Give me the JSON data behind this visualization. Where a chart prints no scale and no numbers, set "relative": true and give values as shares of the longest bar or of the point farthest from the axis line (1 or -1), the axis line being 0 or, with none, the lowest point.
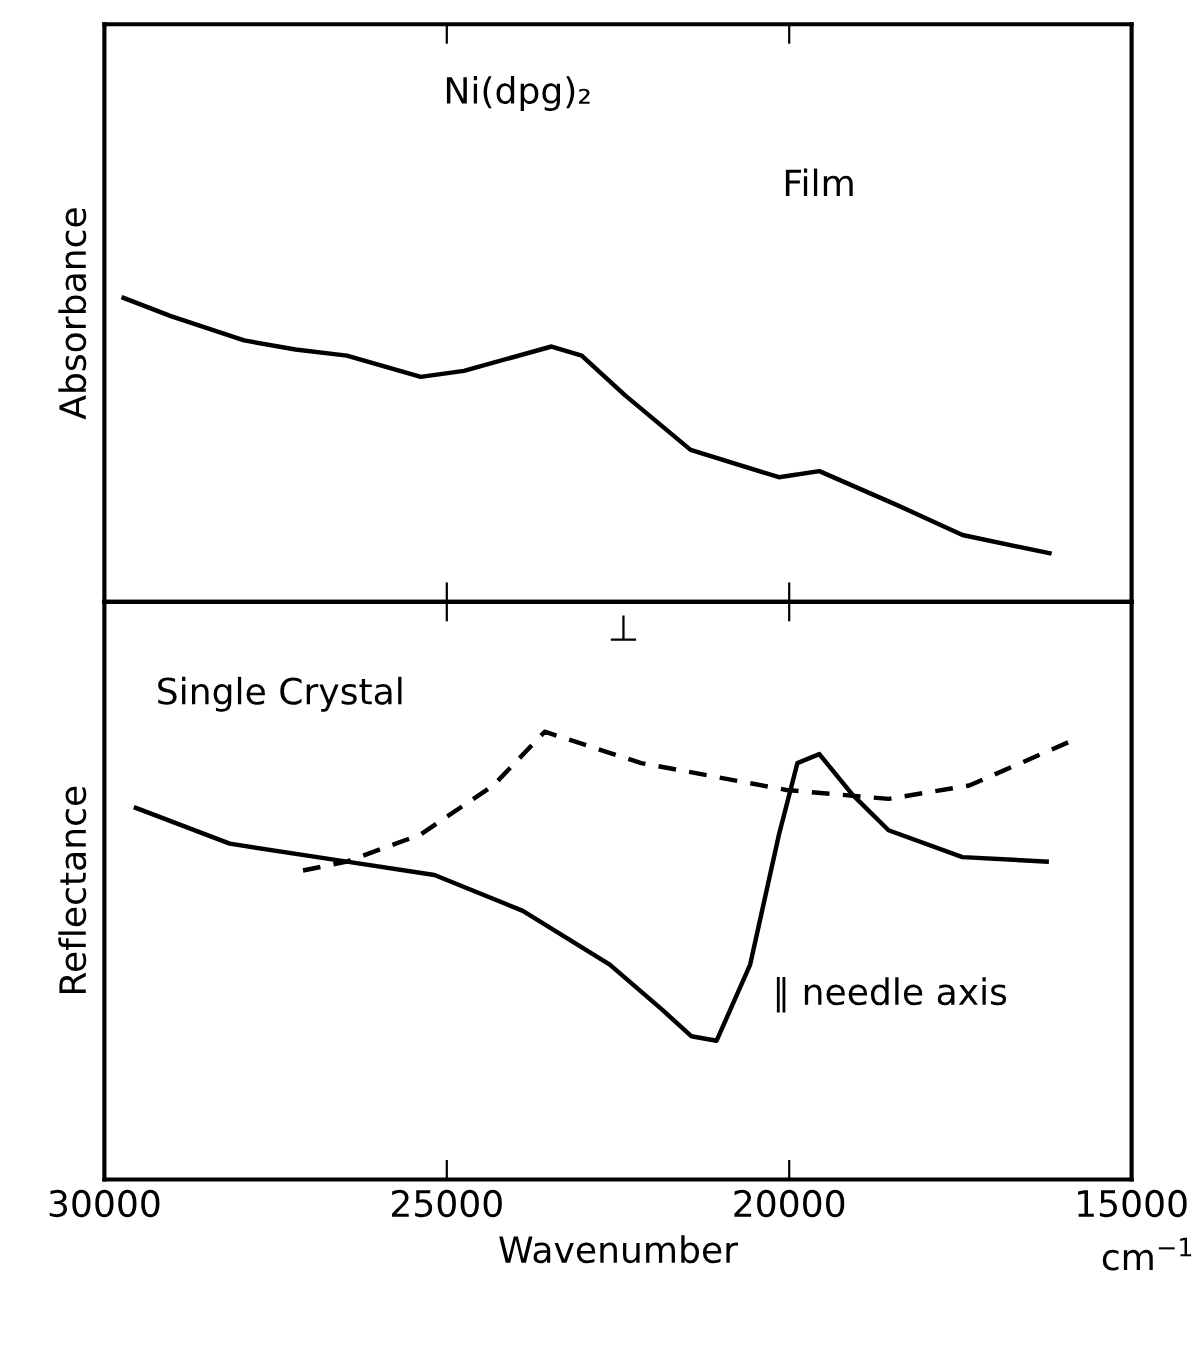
{
  "chart_data": [
    {
      "type": "line",
      "relative": true,
      "ylabel": "Absorbance",
      "xlim": [
        30000,
        15000
      ],
      "xticks": [
        30000,
        25000,
        20000,
        15000
      ],
      "tick_labels": false,
      "grid": false,
      "legend": false,
      "line_style": "solid",
      "annotations": [
        "Ni(dpg)₂",
        "Film"
      ],
      "series": [
        {
          "color": "#000000",
          "x": [
            29720,
            29030,
            27960,
            27210,
            26460,
            25380,
            24750,
            23470,
            23030,
            22400,
            21440,
            20150,
            19560,
            18440,
            17470,
            16200
          ],
          "values": [
            1.0,
            0.94,
            0.86,
            0.83,
            0.81,
            0.74,
            0.76,
            0.84,
            0.81,
            0.68,
            0.5,
            0.41,
            0.43,
            0.32,
            0.22,
            0.16
          ]
        }
      ]
    },
    {
      "type": "line",
      "relative": true,
      "ylabel": "Reflectance",
      "xlabel": "Wavenumber",
      "xlim": [
        30000,
        15000
      ],
      "xticks": [
        30000,
        25000,
        20000,
        15000
      ],
      "tick_labels": "x",
      "grid": false,
      "legend": false,
      "annotations": [
        "Single Crystal",
        "cm$^{−1}$"
      ],
      "series": [
        {
          "name": "∥ needle axis",
          "color": "#000000",
          "line_style": "solid",
          "x": [
            29540,
            28170,
            26460,
            25180,
            23890,
            22620,
            21860,
            21430,
            21060,
            20570,
            20150,
            19880,
            19560,
            19080,
            18550,
            17470,
            16240
          ],
          "values": [
            0.83,
            0.75,
            0.71,
            0.68,
            0.6,
            0.48,
            0.38,
            0.32,
            0.31,
            0.48,
            0.77,
            0.93,
            0.95,
            0.86,
            0.78,
            0.72,
            0.71
          ]
        },
        {
          "name": "⊥",
          "color": "#000000",
          "line_style": "dashed",
          "x": [
            27100,
            26460,
            25390,
            24320,
            23570,
            22160,
            20040,
            18550,
            17370,
            15870
          ],
          "values": [
            0.69,
            0.71,
            0.77,
            0.88,
            1.0,
            0.93,
            0.87,
            0.85,
            0.88,
            0.98
          ]
        }
      ]
    }
  ]
}
